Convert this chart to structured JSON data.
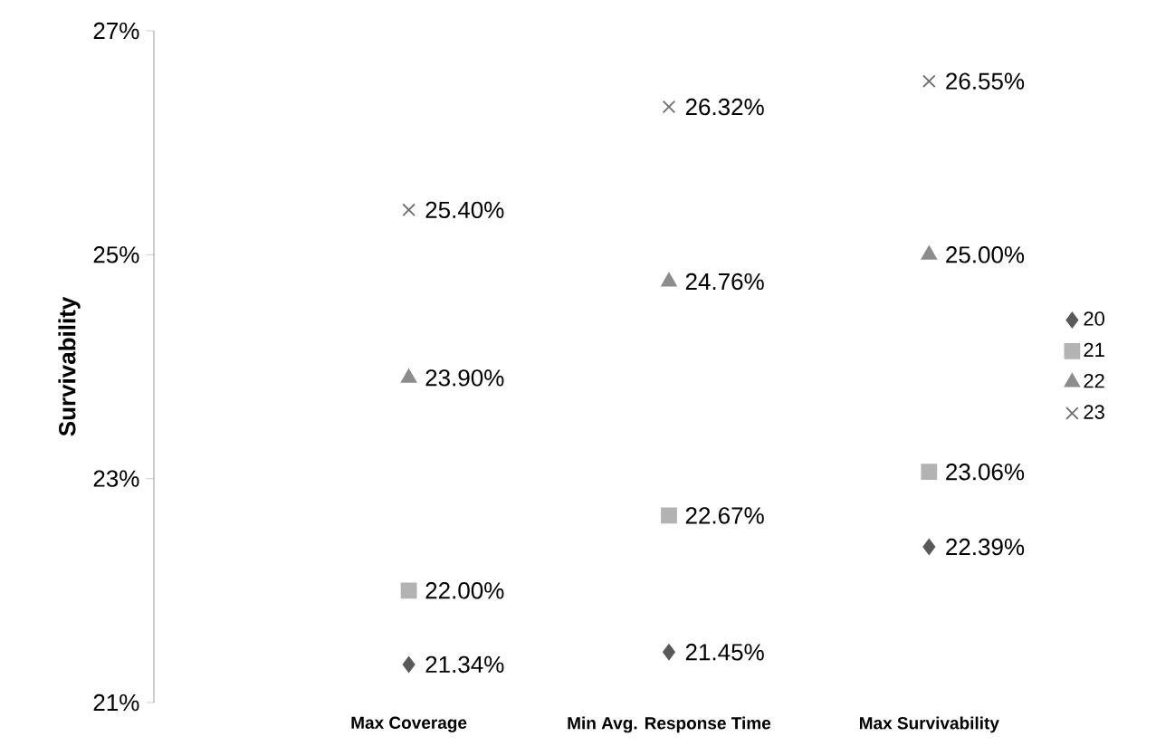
{
  "chart_data": {
    "type": "scatter",
    "ylabel": "Survivability",
    "categories": [
      "Max Coverage",
      "Min Avg. Response Time",
      "Max Survivability"
    ],
    "series": [
      {
        "name": "20",
        "color": "#595959",
        "marker": "diamond",
        "values": [
          21.34,
          21.45,
          22.39
        ],
        "value_labels": [
          "21.34%",
          "21.45%",
          "22.39%"
        ]
      },
      {
        "name": "21",
        "color": "#b3b3b3",
        "marker": "square",
        "values": [
          22.0,
          22.67,
          23.06
        ],
        "value_labels": [
          "22.00%",
          "22.67%",
          "23.06%"
        ]
      },
      {
        "name": "22",
        "color": "#8c8c8c",
        "marker": "triangle",
        "values": [
          23.9,
          24.76,
          25.0
        ],
        "value_labels": [
          "23.90%",
          "24.76%",
          "25.00%"
        ]
      },
      {
        "name": "23",
        "color": "#6e6e6e",
        "marker": "cross",
        "values": [
          25.4,
          26.32,
          26.55
        ],
        "value_labels": [
          "25.40%",
          "26.32%",
          "26.55%"
        ]
      }
    ],
    "ylim": [
      21,
      27
    ],
    "yticks": [
      {
        "value": 21,
        "label": "21%"
      },
      {
        "value": 23,
        "label": "23%"
      },
      {
        "value": 25,
        "label": "25%"
      },
      {
        "value": 27,
        "label": "27%"
      }
    ],
    "legend": "right",
    "grid": false
  }
}
